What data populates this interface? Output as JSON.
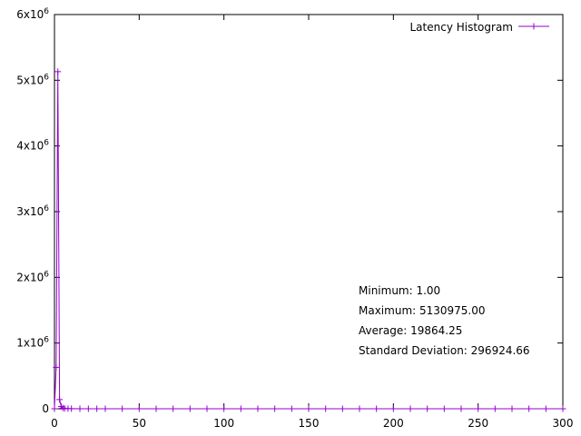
{
  "chart_data": {
    "type": "line",
    "xlim": [
      0,
      300
    ],
    "ylim": [
      0,
      6000000
    ],
    "x_ticks": [
      {
        "value": 0,
        "label": "0"
      },
      {
        "value": 50,
        "label": "50"
      },
      {
        "value": 100,
        "label": "100"
      },
      {
        "value": 150,
        "label": "150"
      },
      {
        "value": 200,
        "label": "200"
      },
      {
        "value": 250,
        "label": "250"
      },
      {
        "value": 300,
        "label": "300"
      }
    ],
    "y_ticks": [
      {
        "value": 0,
        "base": "0",
        "exp": ""
      },
      {
        "value": 1000000,
        "base": "1x10",
        "exp": "6"
      },
      {
        "value": 2000000,
        "base": "2x10",
        "exp": "6"
      },
      {
        "value": 3000000,
        "base": "3x10",
        "exp": "6"
      },
      {
        "value": 4000000,
        "base": "4x10",
        "exp": "6"
      },
      {
        "value": 5000000,
        "base": "5x10",
        "exp": "6"
      },
      {
        "value": 6000000,
        "base": "6x10",
        "exp": "6"
      }
    ],
    "legend_position": "top-right",
    "grid": false,
    "series": [
      {
        "name": "Latency Histogram",
        "color": "#9400d3",
        "marker": "plus",
        "x": [
          0,
          1,
          2,
          3,
          4,
          5,
          6,
          8,
          10,
          15,
          20,
          25,
          30,
          40,
          50,
          60,
          70,
          80,
          90,
          100,
          110,
          120,
          130,
          140,
          150,
          160,
          170,
          180,
          190,
          200,
          210,
          220,
          230,
          240,
          250,
          260,
          270,
          280,
          290,
          300
        ],
        "y": [
          1,
          630000,
          5130975,
          140000,
          35000,
          12000,
          5000,
          2000,
          1000,
          500,
          300,
          200,
          150,
          100,
          80,
          60,
          50,
          40,
          30,
          25,
          20,
          18,
          15,
          12,
          10,
          9,
          8,
          7,
          6,
          5,
          5,
          4,
          4,
          3,
          3,
          3,
          2,
          2,
          2,
          2
        ]
      }
    ],
    "annotations": [
      "Minimum: 1.00",
      "Maximum: 5130975.00",
      "Average: 19864.25",
      "Standard Deviation: 296924.66"
    ]
  }
}
